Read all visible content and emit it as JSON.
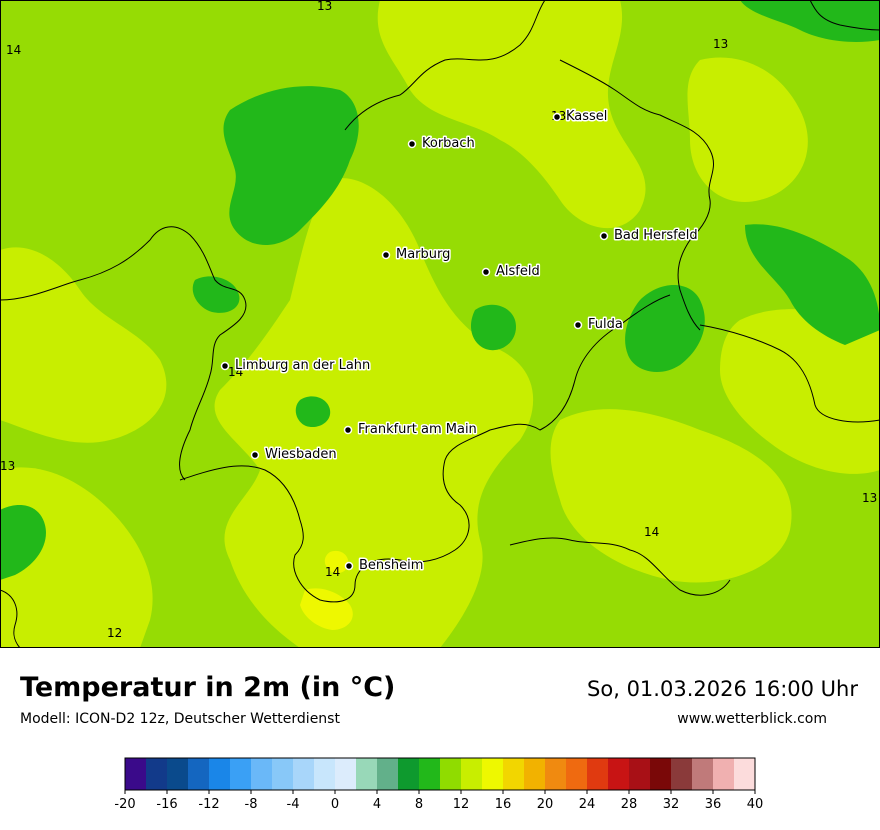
{
  "title": "Temperatur in 2m (in °C)",
  "model": "Modell: ICON-D2 12z, Deutscher Wetterdienst",
  "datetime": "So, 01.03.2026 16:00 Uhr",
  "website": "www.wetterblick.com",
  "map": {
    "cities": [
      "Kassel",
      "Korbach",
      "Bad Hersfeld",
      "Marburg",
      "Alsfeld",
      "Fulda",
      "Limburg an der Lahn",
      "Frankfurt am Main",
      "Wiesbaden",
      "Bensheim"
    ],
    "isotherm_labels": [
      "13",
      "14",
      "13",
      "13",
      "14",
      "13",
      "13",
      "14",
      "14",
      "12"
    ]
  },
  "legend": {
    "ticks": [
      "-20",
      "-16",
      "-12",
      "-8",
      "-4",
      "0",
      "4",
      "8",
      "12",
      "16",
      "20",
      "24",
      "28",
      "32",
      "36",
      "40"
    ],
    "colors": [
      "#3a0a8a",
      "#123a8a",
      "#0a4a8c",
      "#1466c0",
      "#1a86e8",
      "#3aa0f5",
      "#6ab8f8",
      "#88c8f8",
      "#a8d6fa",
      "#c8e6fc",
      "#dcecfc",
      "#98d8b8",
      "#62b08a",
      "#0e9a2e",
      "#22b81a",
      "#90dc00",
      "#c8ee00",
      "#eef800",
      "#f2d600",
      "#f2b200",
      "#f08a10",
      "#ef6a10",
      "#e03a10",
      "#c81414",
      "#a81016",
      "#7a0808",
      "#8a3a3a",
      "#c07a7a",
      "#f0b0b0",
      "#fcdcdc"
    ]
  }
}
